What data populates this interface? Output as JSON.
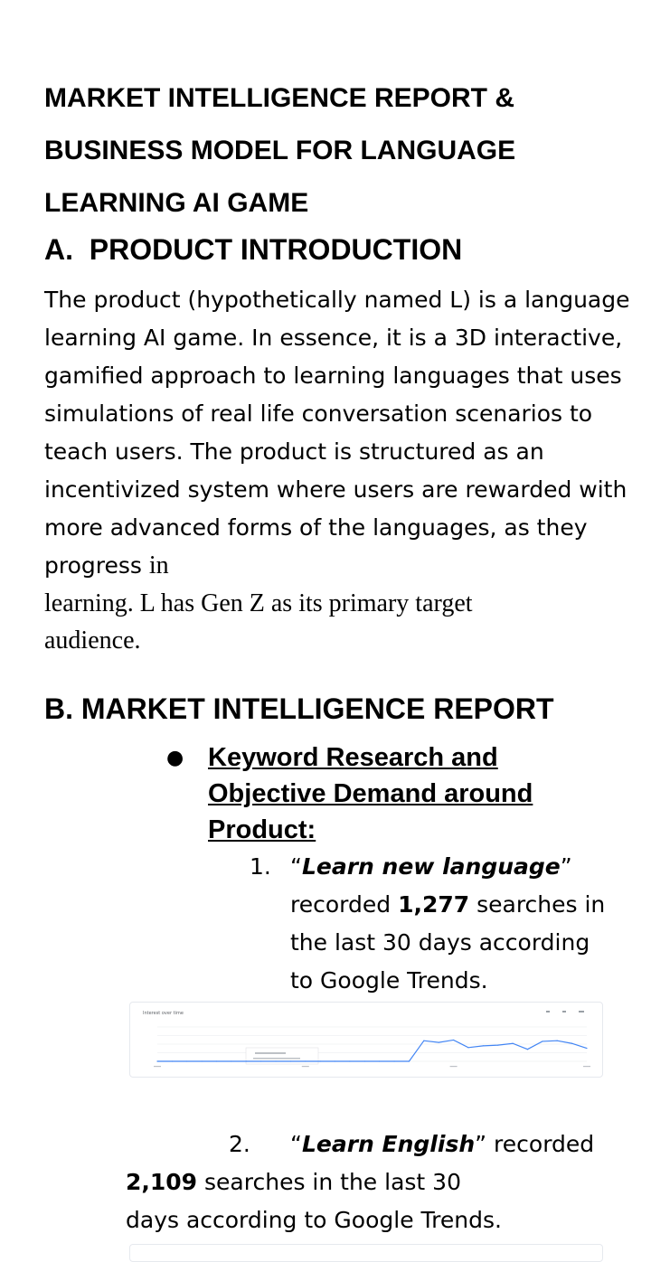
{
  "title": "MARKET INTELLIGENCE REPORT & BUSINESS MODEL FOR LANGUAGE LEARNING AI GAME",
  "section_a": {
    "heading": "A.  PRODUCT INTRODUCTION",
    "para_main": "The product (hypothetically named L) is a language learning AI game. In essence, it is a 3D interactive, gamified approach to learning languages that uses simulations of real life conversation scenarios to teach users. The product is structured as an incentivized system where users are rewarded with more advanced forms of the languages, as they progress ",
    "para_in": "in",
    "para_learning": "learning. L has Gen Z as its primary target",
    "para_end": "audience."
  },
  "section_b": {
    "heading": "B. MARKET INTELLIGENCE REPORT",
    "bullet": "Keyword Research and Objective Demand around Product:",
    "items": [
      {
        "number": "1.",
        "open_quote": "“",
        "keyword": "Learn new language",
        "close_quote": "”",
        "recorded": " recorded ",
        "count": "1,277",
        "rest": " searches in the last 30 days according to Google Trends."
      },
      {
        "number": "2.",
        "open_quote": "“",
        "keyword": "Learn English",
        "close_quote": "”",
        "recorded": " recorded",
        "count": "2,109",
        "rest": " searches in the last 30 days according to Google Trends."
      }
    ]
  },
  "chart_data": {
    "type": "line",
    "title": "Interest over time",
    "x": [
      0,
      1,
      2,
      3,
      4,
      5,
      6,
      7,
      8,
      9,
      10,
      11,
      12,
      13,
      14,
      15,
      16,
      17,
      18,
      19,
      20,
      21,
      22,
      23,
      24,
      25,
      26,
      27,
      28,
      29
    ],
    "series": [
      {
        "name": "Learn new language",
        "values": [
          0,
          0,
          0,
          0,
          0,
          0,
          0,
          0,
          0,
          0,
          0,
          0,
          0,
          0,
          0,
          0,
          0,
          0,
          60,
          55,
          62,
          40,
          45,
          47,
          52,
          35,
          58,
          60,
          52,
          38
        ]
      }
    ],
    "ylim": [
      0,
      100
    ],
    "colors": {
      "line": "#4285f4",
      "grid": "#e8eaed"
    }
  }
}
